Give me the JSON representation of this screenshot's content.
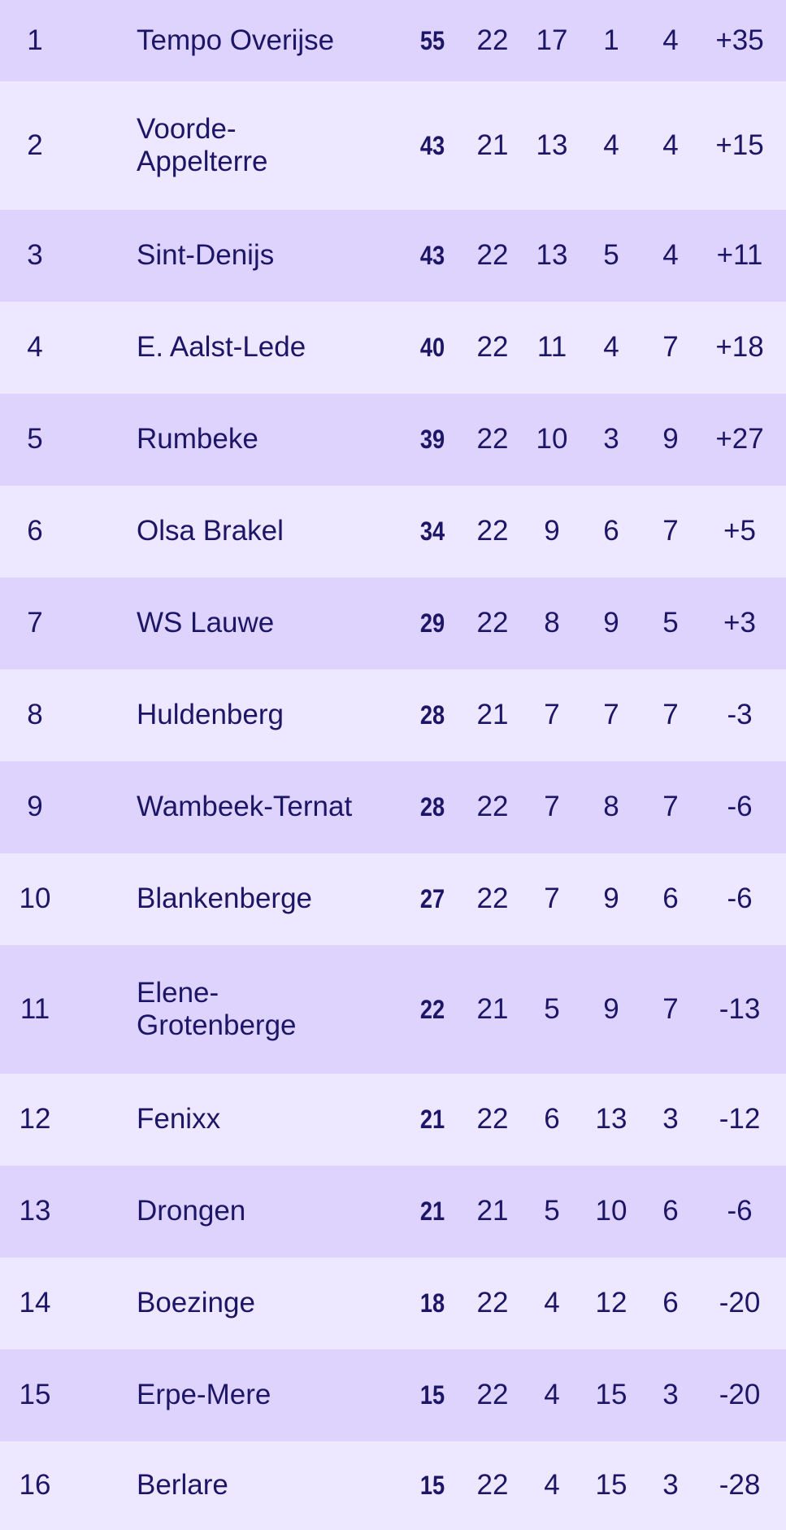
{
  "standings": [
    {
      "rank": "1",
      "team": "Tempo Overijse",
      "pts": "55",
      "gp": "22",
      "w": "17",
      "d": "1",
      "l": "4",
      "gd": "+35"
    },
    {
      "rank": "2",
      "team": "Voorde-Appelterre",
      "pts": "43",
      "gp": "21",
      "w": "13",
      "d": "4",
      "l": "4",
      "gd": "+15"
    },
    {
      "rank": "3",
      "team": "Sint-Denijs",
      "pts": "43",
      "gp": "22",
      "w": "13",
      "d": "5",
      "l": "4",
      "gd": "+11"
    },
    {
      "rank": "4",
      "team": "E. Aalst-Lede",
      "pts": "40",
      "gp": "22",
      "w": "11",
      "d": "4",
      "l": "7",
      "gd": "+18"
    },
    {
      "rank": "5",
      "team": "Rumbeke",
      "pts": "39",
      "gp": "22",
      "w": "10",
      "d": "3",
      "l": "9",
      "gd": "+27"
    },
    {
      "rank": "6",
      "team": "Olsa Brakel",
      "pts": "34",
      "gp": "22",
      "w": "9",
      "d": "6",
      "l": "7",
      "gd": "+5"
    },
    {
      "rank": "7",
      "team": "WS Lauwe",
      "pts": "29",
      "gp": "22",
      "w": "8",
      "d": "9",
      "l": "5",
      "gd": "+3"
    },
    {
      "rank": "8",
      "team": "Huldenberg",
      "pts": "28",
      "gp": "21",
      "w": "7",
      "d": "7",
      "l": "7",
      "gd": "-3"
    },
    {
      "rank": "9",
      "team": "Wambeek-Ternat",
      "pts": "28",
      "gp": "22",
      "w": "7",
      "d": "8",
      "l": "7",
      "gd": "-6"
    },
    {
      "rank": "10",
      "team": "Blankenberge",
      "pts": "27",
      "gp": "22",
      "w": "7",
      "d": "9",
      "l": "6",
      "gd": "-6"
    },
    {
      "rank": "11",
      "team": "Elene-Grotenberge",
      "pts": "22",
      "gp": "21",
      "w": "5",
      "d": "9",
      "l": "7",
      "gd": "-13"
    },
    {
      "rank": "12",
      "team": "Fenixx",
      "pts": "21",
      "gp": "22",
      "w": "6",
      "d": "13",
      "l": "3",
      "gd": "-12"
    },
    {
      "rank": "13",
      "team": "Drongen",
      "pts": "21",
      "gp": "21",
      "w": "5",
      "d": "10",
      "l": "6",
      "gd": "-6"
    },
    {
      "rank": "14",
      "team": "Boezinge",
      "pts": "18",
      "gp": "22",
      "w": "4",
      "d": "12",
      "l": "6",
      "gd": "-20"
    },
    {
      "rank": "15",
      "team": "Erpe-Mere",
      "pts": "15",
      "gp": "22",
      "w": "4",
      "d": "15",
      "l": "3",
      "gd": "-20"
    },
    {
      "rank": "16",
      "team": "Berlare",
      "pts": "15",
      "gp": "22",
      "w": "4",
      "d": "15",
      "l": "3",
      "gd": "-28"
    }
  ]
}
